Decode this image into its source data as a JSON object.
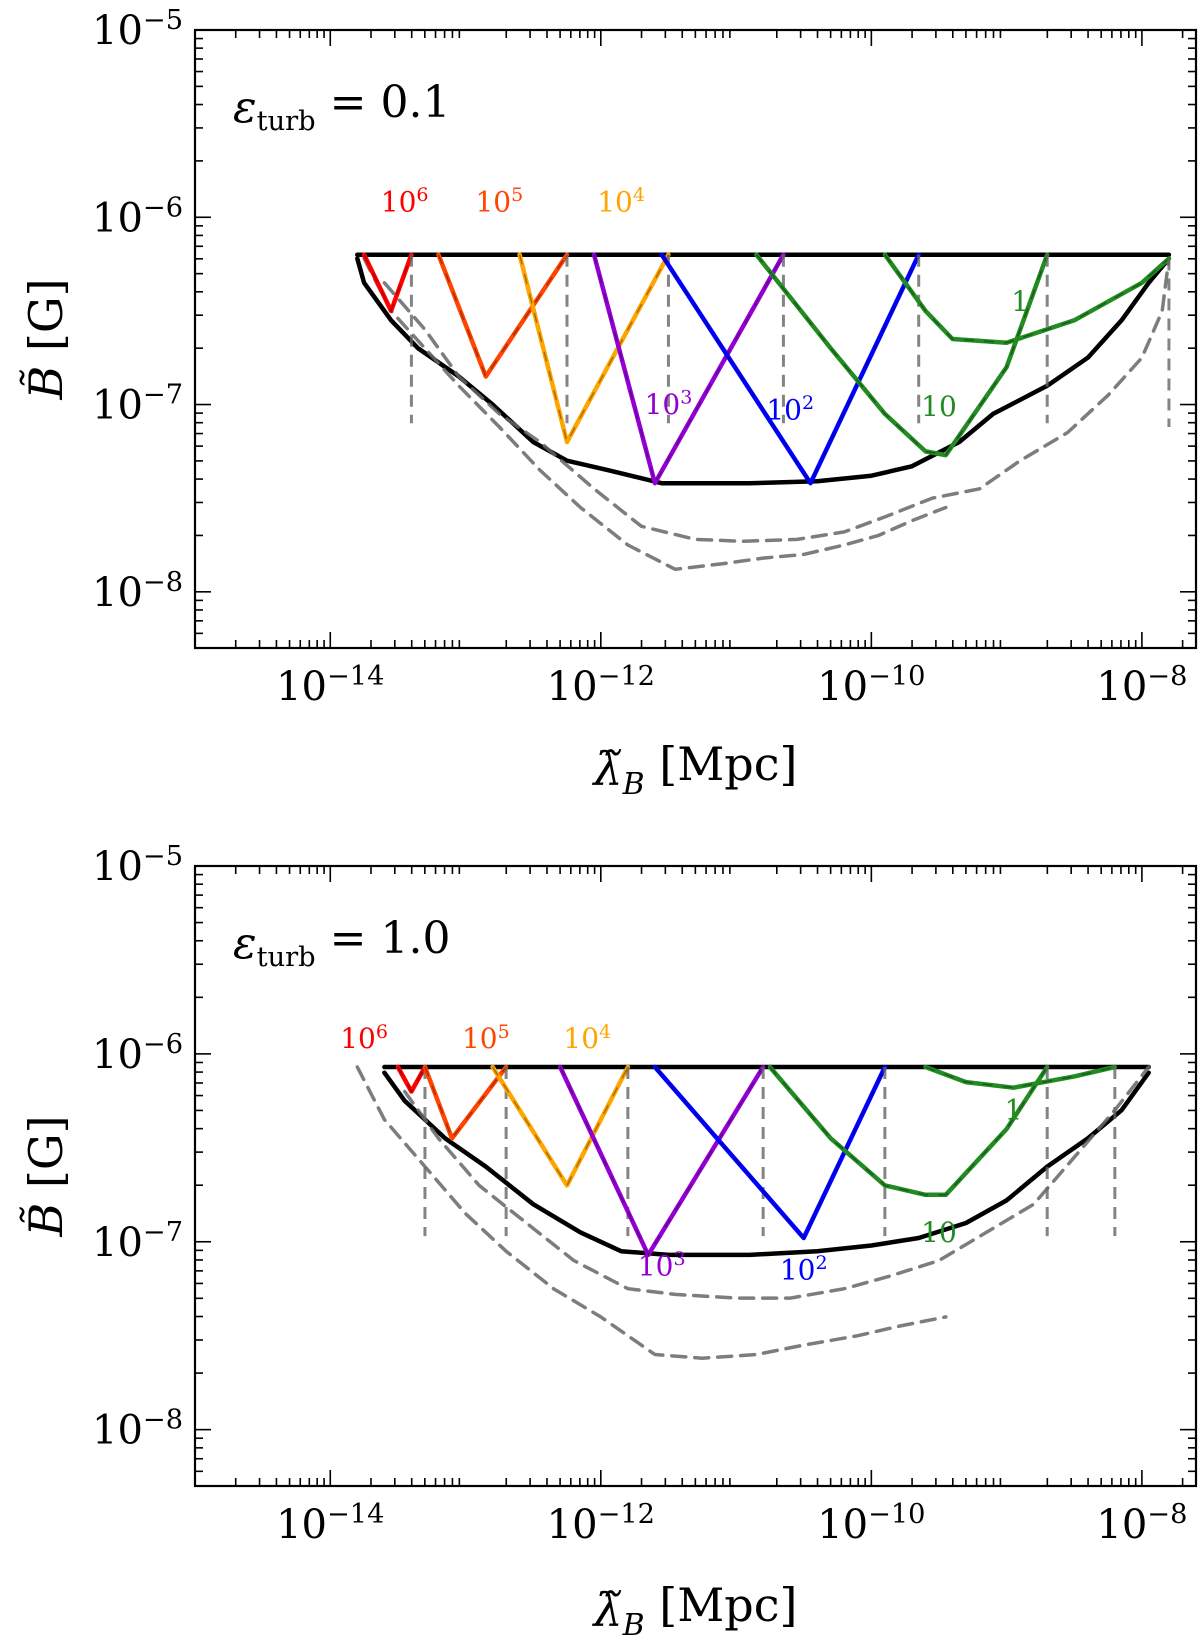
{
  "chart_data": [
    {
      "type": "line",
      "annotation": {
        "symbol": "ε",
        "sub": "turb",
        "rest": " = 0.1"
      },
      "xlabel": {
        "sym": "λ̃",
        "sub": "B",
        "unit": " [Mpc]"
      },
      "ylabel": {
        "sym": "B̃",
        "unit": " [G]"
      },
      "x_log": true,
      "y_log": true,
      "xlim_log10": [
        -15.0,
        -7.6
      ],
      "ylim_log10": [
        -8.3,
        -5.0
      ],
      "x_ticks": [
        {
          "base": "10",
          "exp": "−14",
          "v": -14
        },
        {
          "base": "10",
          "exp": "−12",
          "v": -12
        },
        {
          "base": "10",
          "exp": "−10",
          "v": -10
        },
        {
          "base": "10",
          "exp": "−8",
          "v": -8
        }
      ],
      "y_ticks": [
        {
          "base": "10",
          "exp": "−5",
          "v": -5
        },
        {
          "base": "10",
          "exp": "−6",
          "v": -6
        },
        {
          "base": "10",
          "exp": "−7",
          "v": -7
        },
        {
          "base": "10",
          "exp": "−8",
          "v": -8
        }
      ],
      "curve_labels": [
        {
          "base": "10",
          "exp": "6",
          "color": "#ff0000",
          "x": -13.45,
          "y": -5.97
        },
        {
          "base": "10",
          "exp": "5",
          "color": "#ff4500",
          "x": -12.75,
          "y": -5.97
        },
        {
          "base": "10",
          "exp": "4",
          "color": "#ffa500",
          "x": -11.85,
          "y": -5.97
        },
        {
          "base": "10",
          "exp": "3",
          "color": "#9400d3",
          "x": -11.5,
          "y": -7.05
        },
        {
          "base": "10",
          "exp": "2",
          "color": "#0000ff",
          "x": -10.6,
          "y": -7.08
        },
        {
          "base": "10",
          "exp": "",
          "color": "#228b22",
          "x": -9.5,
          "y": -7.06
        },
        {
          "base": "1",
          "exp": "",
          "color": "#228b22",
          "x": -8.9,
          "y": -6.5
        }
      ],
      "series": [
        {
          "style": "solid-black",
          "points": [
            [
              -13.8,
              -6.2
            ],
            [
              -13.3,
              -6.2
            ],
            [
              -12.6,
              -6.2
            ],
            [
              -11.8,
              -6.2
            ],
            [
              -10.9,
              -6.2
            ],
            [
              -9.9,
              -6.2
            ],
            [
              -9.0,
              -6.2
            ],
            [
              -8.3,
              -6.2
            ],
            [
              -7.8,
              -6.2
            ]
          ]
        },
        {
          "style": "solid-black",
          "points": [
            [
              -13.8,
              -6.22
            ],
            [
              -13.75,
              -6.35
            ],
            [
              -13.55,
              -6.55
            ],
            [
              -13.35,
              -6.7
            ],
            [
              -13.05,
              -6.85
            ],
            [
              -12.8,
              -7.0
            ],
            [
              -12.5,
              -7.2
            ],
            [
              -12.25,
              -7.3
            ],
            [
              -11.95,
              -7.35
            ],
            [
              -11.55,
              -7.42
            ],
            [
              -10.9,
              -7.42
            ],
            [
              -10.4,
              -7.41
            ],
            [
              -10.0,
              -7.38
            ],
            [
              -9.7,
              -7.33
            ],
            [
              -9.35,
              -7.2
            ],
            [
              -9.1,
              -7.05
            ],
            [
              -8.7,
              -6.9
            ],
            [
              -8.4,
              -6.75
            ],
            [
              -8.15,
              -6.55
            ],
            [
              -7.95,
              -6.35
            ],
            [
              -7.8,
              -6.22
            ]
          ]
        },
        {
          "style": "dashed-grey",
          "points": [
            [
              -13.75,
              -6.22
            ],
            [
              -13.55,
              -6.5
            ],
            [
              -13.3,
              -6.7
            ],
            [
              -13.05,
              -6.9
            ],
            [
              -12.75,
              -7.12
            ],
            [
              -12.45,
              -7.35
            ],
            [
              -12.15,
              -7.55
            ],
            [
              -11.8,
              -7.75
            ],
            [
              -11.45,
              -7.88
            ],
            [
              -11.1,
              -7.85
            ],
            [
              -10.8,
              -7.82
            ],
            [
              -10.5,
              -7.8
            ],
            [
              -10.2,
              -7.75
            ],
            [
              -9.95,
              -7.7
            ],
            [
              -9.7,
              -7.62
            ],
            [
              -9.45,
              -7.55
            ]
          ]
        },
        {
          "style": "dashed-grey",
          "points": [
            [
              -13.6,
              -6.35
            ],
            [
              -13.3,
              -6.6
            ],
            [
              -13.05,
              -6.85
            ],
            [
              -12.75,
              -7.05
            ],
            [
              -12.45,
              -7.2
            ],
            [
              -12.05,
              -7.45
            ],
            [
              -11.7,
              -7.65
            ],
            [
              -11.3,
              -7.72
            ],
            [
              -10.95,
              -7.73
            ],
            [
              -10.55,
              -7.72
            ],
            [
              -10.2,
              -7.68
            ],
            [
              -9.9,
              -7.6
            ],
            [
              -9.55,
              -7.5
            ],
            [
              -9.2,
              -7.45
            ],
            [
              -8.9,
              -7.3
            ],
            [
              -8.55,
              -7.15
            ],
            [
              -8.25,
              -6.95
            ],
            [
              -8.0,
              -6.75
            ],
            [
              -7.85,
              -6.5
            ],
            [
              -7.8,
              -6.22
            ]
          ]
        },
        {
          "style": "solid",
          "color": "#ff0000",
          "points": [
            [
              -13.75,
              -6.2
            ],
            [
              -13.55,
              -6.5
            ],
            [
              -13.4,
              -6.2
            ]
          ]
        },
        {
          "style": "solid",
          "color": "#ff4500",
          "points": [
            [
              -13.2,
              -6.2
            ],
            [
              -12.85,
              -6.85
            ],
            [
              -12.25,
              -6.2
            ]
          ]
        },
        {
          "style": "solid",
          "color": "#ffa500",
          "points": [
            [
              -12.6,
              -6.2
            ],
            [
              -12.25,
              -7.2
            ],
            [
              -11.5,
              -6.2
            ]
          ]
        },
        {
          "style": "solid",
          "color": "#9400d3",
          "points": [
            [
              -12.05,
              -6.2
            ],
            [
              -11.6,
              -7.42
            ],
            [
              -10.65,
              -6.2
            ]
          ]
        },
        {
          "style": "solid",
          "color": "#0000ff",
          "points": [
            [
              -11.55,
              -6.2
            ],
            [
              -10.45,
              -7.42
            ],
            [
              -9.65,
              -6.2
            ]
          ]
        },
        {
          "style": "solid",
          "color": "#228b22",
          "points": [
            [
              -10.85,
              -6.2
            ],
            [
              -10.3,
              -6.7
            ],
            [
              -9.9,
              -7.05
            ],
            [
              -9.6,
              -7.25
            ],
            [
              -9.45,
              -7.27
            ],
            [
              -9.0,
              -6.8
            ],
            [
              -8.7,
              -6.2
            ]
          ]
        },
        {
          "style": "solid",
          "color": "#228b22",
          "points": [
            [
              -9.9,
              -6.2
            ],
            [
              -9.6,
              -6.5
            ],
            [
              -9.4,
              -6.65
            ],
            [
              -9.0,
              -6.67
            ],
            [
              -8.5,
              -6.55
            ],
            [
              -8.0,
              -6.35
            ],
            [
              -7.8,
              -6.22
            ]
          ]
        }
      ]
    },
    {
      "type": "line",
      "annotation": {
        "symbol": "ε",
        "sub": "turb",
        "rest": " = 1.0"
      },
      "xlabel": {
        "sym": "λ̃",
        "sub": "B",
        "unit": " [Mpc]"
      },
      "ylabel": {
        "sym": "B̃",
        "unit": " [G]"
      },
      "x_log": true,
      "y_log": true,
      "xlim_log10": [
        -15.0,
        -7.6
      ],
      "ylim_log10": [
        -8.3,
        -5.0
      ],
      "x_ticks": [
        {
          "base": "10",
          "exp": "−14",
          "v": -14
        },
        {
          "base": "10",
          "exp": "−12",
          "v": -12
        },
        {
          "base": "10",
          "exp": "−10",
          "v": -10
        },
        {
          "base": "10",
          "exp": "−8",
          "v": -8
        }
      ],
      "y_ticks": [
        {
          "base": "10",
          "exp": "−5",
          "v": -5
        },
        {
          "base": "10",
          "exp": "−6",
          "v": -6
        },
        {
          "base": "10",
          "exp": "−7",
          "v": -7
        },
        {
          "base": "10",
          "exp": "−8",
          "v": -8
        }
      ],
      "curve_labels": [
        {
          "base": "10",
          "exp": "6",
          "color": "#ff0000",
          "x": -13.75,
          "y": -5.97
        },
        {
          "base": "10",
          "exp": "5",
          "color": "#ff4500",
          "x": -12.85,
          "y": -5.97
        },
        {
          "base": "10",
          "exp": "4",
          "color": "#ffa500",
          "x": -12.1,
          "y": -5.97
        },
        {
          "base": "10",
          "exp": "3",
          "color": "#9400d3",
          "x": -11.55,
          "y": -7.18
        },
        {
          "base": "10",
          "exp": "2",
          "color": "#0000ff",
          "x": -10.5,
          "y": -7.2
        },
        {
          "base": "10",
          "exp": "",
          "color": "#228b22",
          "x": -9.5,
          "y": -7.0
        },
        {
          "base": "1",
          "exp": "",
          "color": "#228b22",
          "x": -8.95,
          "y": -6.35
        }
      ],
      "series": [
        {
          "style": "solid-black",
          "points": [
            [
              -13.6,
              -6.07
            ],
            [
              -12.5,
              -6.07
            ],
            [
              -11.4,
              -6.07
            ],
            [
              -10.3,
              -6.07
            ],
            [
              -9.2,
              -6.07
            ],
            [
              -8.1,
              -6.07
            ],
            [
              -7.95,
              -6.07
            ]
          ]
        },
        {
          "style": "solid-black",
          "points": [
            [
              -13.6,
              -6.1
            ],
            [
              -13.45,
              -6.25
            ],
            [
              -13.15,
              -6.45
            ],
            [
              -12.85,
              -6.6
            ],
            [
              -12.5,
              -6.8
            ],
            [
              -12.15,
              -6.95
            ],
            [
              -11.85,
              -7.05
            ],
            [
              -11.5,
              -7.07
            ],
            [
              -10.9,
              -7.07
            ],
            [
              -10.4,
              -7.05
            ],
            [
              -10.0,
              -7.02
            ],
            [
              -9.65,
              -6.98
            ],
            [
              -9.3,
              -6.9
            ],
            [
              -9.0,
              -6.78
            ],
            [
              -8.7,
              -6.6
            ],
            [
              -8.4,
              -6.45
            ],
            [
              -8.15,
              -6.3
            ],
            [
              -7.95,
              -6.1
            ]
          ]
        },
        {
          "style": "dashed-grey",
          "points": [
            [
              -13.8,
              -6.07
            ],
            [
              -13.6,
              -6.35
            ],
            [
              -13.3,
              -6.6
            ],
            [
              -13.0,
              -6.85
            ],
            [
              -12.7,
              -7.05
            ],
            [
              -12.35,
              -7.25
            ],
            [
              -12.0,
              -7.4
            ],
            [
              -11.6,
              -7.6
            ],
            [
              -11.25,
              -7.62
            ],
            [
              -10.85,
              -7.6
            ],
            [
              -10.5,
              -7.55
            ],
            [
              -10.1,
              -7.5
            ],
            [
              -9.8,
              -7.45
            ],
            [
              -9.45,
              -7.4
            ]
          ]
        },
        {
          "style": "dashed-grey",
          "points": [
            [
              -13.45,
              -6.2
            ],
            [
              -13.2,
              -6.45
            ],
            [
              -12.9,
              -6.7
            ],
            [
              -12.55,
              -6.9
            ],
            [
              -12.2,
              -7.1
            ],
            [
              -11.8,
              -7.25
            ],
            [
              -11.45,
              -7.28
            ],
            [
              -11.0,
              -7.3
            ],
            [
              -10.6,
              -7.3
            ],
            [
              -10.2,
              -7.25
            ],
            [
              -9.85,
              -7.18
            ],
            [
              -9.5,
              -7.1
            ],
            [
              -9.15,
              -6.95
            ],
            [
              -8.8,
              -6.8
            ],
            [
              -8.5,
              -6.55
            ],
            [
              -8.2,
              -6.3
            ],
            [
              -7.95,
              -6.07
            ]
          ]
        },
        {
          "style": "solid",
          "color": "#ff0000",
          "points": [
            [
              -13.5,
              -6.07
            ],
            [
              -13.4,
              -6.2
            ],
            [
              -13.3,
              -6.07
            ]
          ]
        },
        {
          "style": "solid",
          "color": "#ff4500",
          "points": [
            [
              -13.3,
              -6.07
            ],
            [
              -13.1,
              -6.45
            ],
            [
              -12.7,
              -6.07
            ]
          ]
        },
        {
          "style": "solid",
          "color": "#ffa500",
          "points": [
            [
              -12.8,
              -6.07
            ],
            [
              -12.25,
              -6.7
            ],
            [
              -11.8,
              -6.07
            ]
          ]
        },
        {
          "style": "solid",
          "color": "#9400d3",
          "points": [
            [
              -12.3,
              -6.07
            ],
            [
              -11.65,
              -7.07
            ],
            [
              -10.8,
              -6.07
            ]
          ]
        },
        {
          "style": "solid",
          "color": "#0000ff",
          "points": [
            [
              -11.6,
              -6.07
            ],
            [
              -10.5,
              -6.98
            ],
            [
              -9.9,
              -6.07
            ]
          ]
        },
        {
          "style": "solid",
          "color": "#228b22",
          "points": [
            [
              -10.75,
              -6.07
            ],
            [
              -10.3,
              -6.45
            ],
            [
              -9.9,
              -6.7
            ],
            [
              -9.6,
              -6.75
            ],
            [
              -9.45,
              -6.75
            ],
            [
              -9.0,
              -6.4
            ],
            [
              -8.7,
              -6.07
            ]
          ]
        },
        {
          "style": "solid",
          "color": "#228b22",
          "points": [
            [
              -9.6,
              -6.07
            ],
            [
              -9.3,
              -6.15
            ],
            [
              -8.95,
              -6.18
            ],
            [
              -8.5,
              -6.12
            ],
            [
              -8.2,
              -6.07
            ]
          ]
        }
      ]
    }
  ]
}
